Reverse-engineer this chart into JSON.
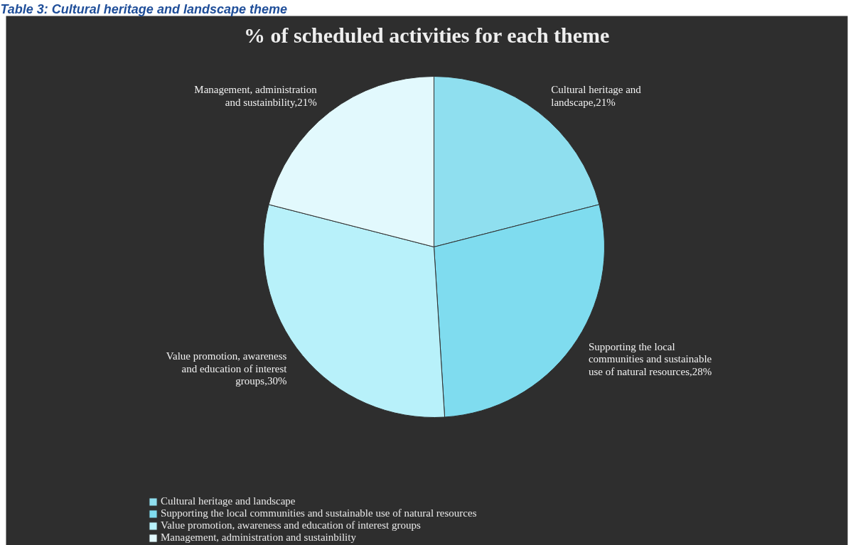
{
  "chart_data": {
    "type": "pie",
    "title": "% of scheduled activities for each theme",
    "annotations": [
      "Table 3: Cultural heritage and landscape theme"
    ],
    "categories": [
      "Cultural heritage and landscape",
      "Supporting the local communities and sustainable use of natural resources",
      "Value promotion, awareness and education of interest groups",
      "Management, administration and sustainbility"
    ],
    "values": [
      21,
      28,
      30,
      21
    ],
    "colors": [
      "#8fdfef",
      "#7fdcef",
      "#b8f1fa",
      "#e2f9fd"
    ],
    "value_labels": [
      "Cultural heritage and landscape,21%",
      "Supporting the local communities and sustainable use of natural resources,28%",
      "Value promotion, awareness and education of interest groups,30%",
      "Management, administration and sustainbility,21%"
    ],
    "legend": "bottom"
  }
}
